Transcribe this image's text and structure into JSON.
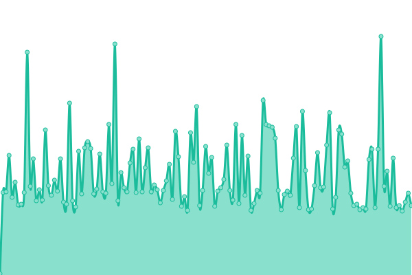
{
  "chart_data": {
    "type": "area",
    "title": "",
    "xlabel": "",
    "ylabel": "",
    "ylim": [
      0,
      400
    ],
    "grid": false,
    "legend": "none",
    "show_markers": true,
    "colors": {
      "line": "#1abc9c",
      "fill": "#88e0cd",
      "marker_fill": "#88e0cd"
    },
    "series": [
      {
        "values": [
          2,
          120,
          121,
          174,
          113,
          135,
          102,
          103,
          120,
          324,
          129,
          169,
          108,
          124,
          109,
          211,
          130,
          116,
          138,
          122,
          169,
          106,
          103,
          250,
          108,
          99,
          180,
          118,
          185,
          194,
          184,
          118,
          125,
          176,
          121,
          119,
          219,
          133,
          336,
          108,
          149,
          127,
          121,
          163,
          183,
          120,
          198,
          121,
          156,
          185,
          121,
          131,
          124,
          105,
          123,
          137,
          161,
          110,
          209,
          172,
          100,
          114,
          94,
          207,
          164,
          245,
          101,
          123,
          187,
          148,
          171,
          100,
          122,
          127,
          139,
          189,
          123,
          109,
          219,
          104,
          203,
          116,
          173,
          94,
          104,
          123,
          119,
          254,
          219,
          217,
          215,
          199,
          123,
          95,
          117,
          122,
          116,
          170,
          216,
          98,
          238,
          152,
          95,
          96,
          130,
          178,
          127,
          128,
          189,
          236,
          96,
          113,
          211,
          205,
          157,
          166,
          119,
          101,
          103,
          95,
          98,
          96,
          168,
          183,
          98,
          183,
          347,
          129,
          151,
          100,
          170,
          98,
          101,
          93,
          106,
          119,
          101
        ]
      }
    ]
  }
}
